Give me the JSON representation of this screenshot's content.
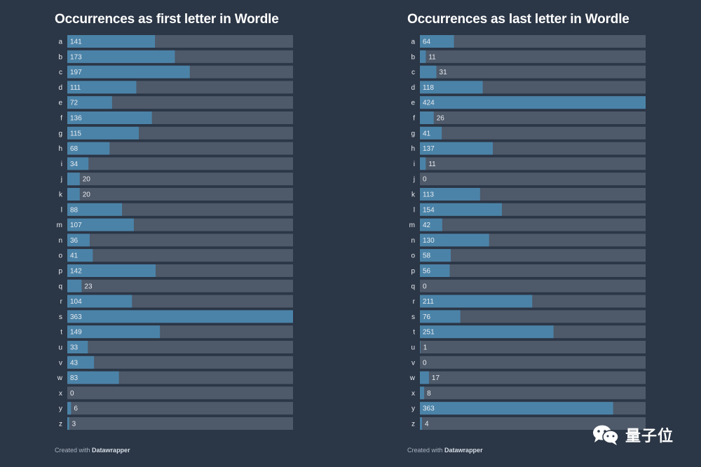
{
  "chart_data": [
    {
      "type": "bar",
      "orientation": "horizontal",
      "title": "Occurrences as first letter in Wordle",
      "categories": [
        "a",
        "b",
        "c",
        "d",
        "e",
        "f",
        "g",
        "h",
        "i",
        "j",
        "k",
        "l",
        "m",
        "n",
        "o",
        "p",
        "q",
        "r",
        "s",
        "t",
        "u",
        "v",
        "w",
        "x",
        "y",
        "z"
      ],
      "values": [
        141,
        173,
        197,
        111,
        72,
        136,
        115,
        68,
        34,
        20,
        20,
        88,
        107,
        36,
        41,
        142,
        23,
        104,
        363,
        149,
        33,
        43,
        83,
        0,
        6,
        3
      ],
      "xlim": [
        0,
        363
      ],
      "grid": false,
      "legend": "none"
    },
    {
      "type": "bar",
      "orientation": "horizontal",
      "title": "Occurrences as last letter in Wordle",
      "categories": [
        "a",
        "b",
        "c",
        "d",
        "e",
        "f",
        "g",
        "h",
        "i",
        "j",
        "k",
        "l",
        "m",
        "n",
        "o",
        "p",
        "q",
        "r",
        "s",
        "t",
        "u",
        "v",
        "w",
        "x",
        "y",
        "z"
      ],
      "values": [
        64,
        11,
        31,
        118,
        424,
        26,
        41,
        137,
        11,
        0,
        113,
        154,
        42,
        130,
        58,
        56,
        0,
        211,
        76,
        251,
        1,
        0,
        17,
        8,
        363,
        4
      ],
      "xlim": [
        0,
        424
      ],
      "grid": false,
      "legend": "none"
    }
  ],
  "footer": {
    "credit_prefix": "Created with",
    "credit_brand": "Datawrapper"
  },
  "watermark": {
    "text": "量子位"
  },
  "colors": {
    "background": "#2b3646",
    "bar_track": "#4e5969",
    "bar_value": "#4b83a8"
  }
}
